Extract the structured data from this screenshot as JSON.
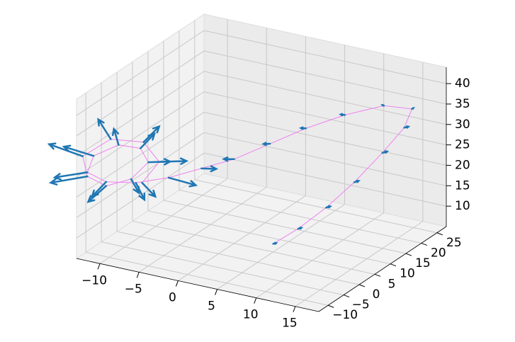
{
  "chart_data": {
    "type": "quiver3d",
    "x": [
      5,
      7,
      9,
      11,
      13,
      15,
      16,
      14,
      11,
      8,
      5,
      2,
      -1,
      -4,
      -7,
      -10,
      -12,
      -12,
      -10,
      -8,
      -7,
      -8,
      -10,
      -12,
      -13,
      -11,
      -8,
      -6,
      -7
    ],
    "y": [
      5,
      8,
      12,
      16,
      20,
      22,
      22,
      18,
      13,
      8,
      4,
      0,
      -3,
      -6,
      -9,
      -11,
      -12,
      -10,
      -7,
      -5,
      -5,
      -8,
      -11,
      -12,
      -11,
      -7,
      -4,
      -4,
      -7
    ],
    "z": [
      7,
      10,
      14,
      19,
      25,
      31,
      36,
      38,
      37,
      35,
      32,
      29,
      27,
      25,
      24,
      24,
      26,
      29,
      31,
      30,
      27,
      24,
      23,
      25,
      29,
      32,
      31,
      27,
      23
    ],
    "u": [
      0.3,
      0.3,
      0.4,
      0.4,
      0.5,
      0.5,
      0.3,
      0,
      -0.3,
      -0.4,
      -0.6,
      -1,
      1.5,
      3,
      1.5,
      -1,
      -3,
      -3,
      -1,
      1,
      2,
      1,
      -1.5,
      -3.5,
      -3.5,
      -2,
      1,
      2.5,
      1.5
    ],
    "v": [
      0.2,
      0.3,
      0.3,
      0.4,
      0.3,
      0.1,
      -0.3,
      -0.5,
      -0.6,
      -0.6,
      -0.6,
      -0.8,
      1,
      1.2,
      -1,
      -2,
      -3,
      -2,
      1,
      2,
      2,
      0,
      -2,
      -3,
      -2,
      1,
      2.5,
      2.5,
      0.5
    ],
    "w": [
      0.2,
      0.2,
      0.3,
      0.3,
      0.4,
      0.4,
      0.5,
      0.4,
      0.3,
      0.2,
      0,
      0,
      0,
      -1.2,
      -3,
      -3,
      -1,
      2,
      3,
      3,
      0,
      -3,
      -3.5,
      -1.5,
      2.5,
      3.5,
      3,
      0,
      -3
    ],
    "arrow_color": "#1f77b4",
    "line_color": "#ee82ee",
    "xlim": [
      -13,
      18
    ],
    "ylim": [
      -13,
      28
    ],
    "zlim": [
      5,
      44
    ],
    "xticks": [
      {
        "value": -10,
        "label": "−10"
      },
      {
        "value": -5,
        "label": "−5"
      },
      0,
      5,
      10,
      15
    ],
    "yticks": [
      {
        "value": -10,
        "label": "−10"
      },
      {
        "value": -5,
        "label": "−5"
      },
      0,
      5,
      10,
      15,
      20,
      25
    ],
    "zticks": [
      10,
      15,
      20,
      25,
      30,
      35,
      40
    ],
    "grid": true
  }
}
